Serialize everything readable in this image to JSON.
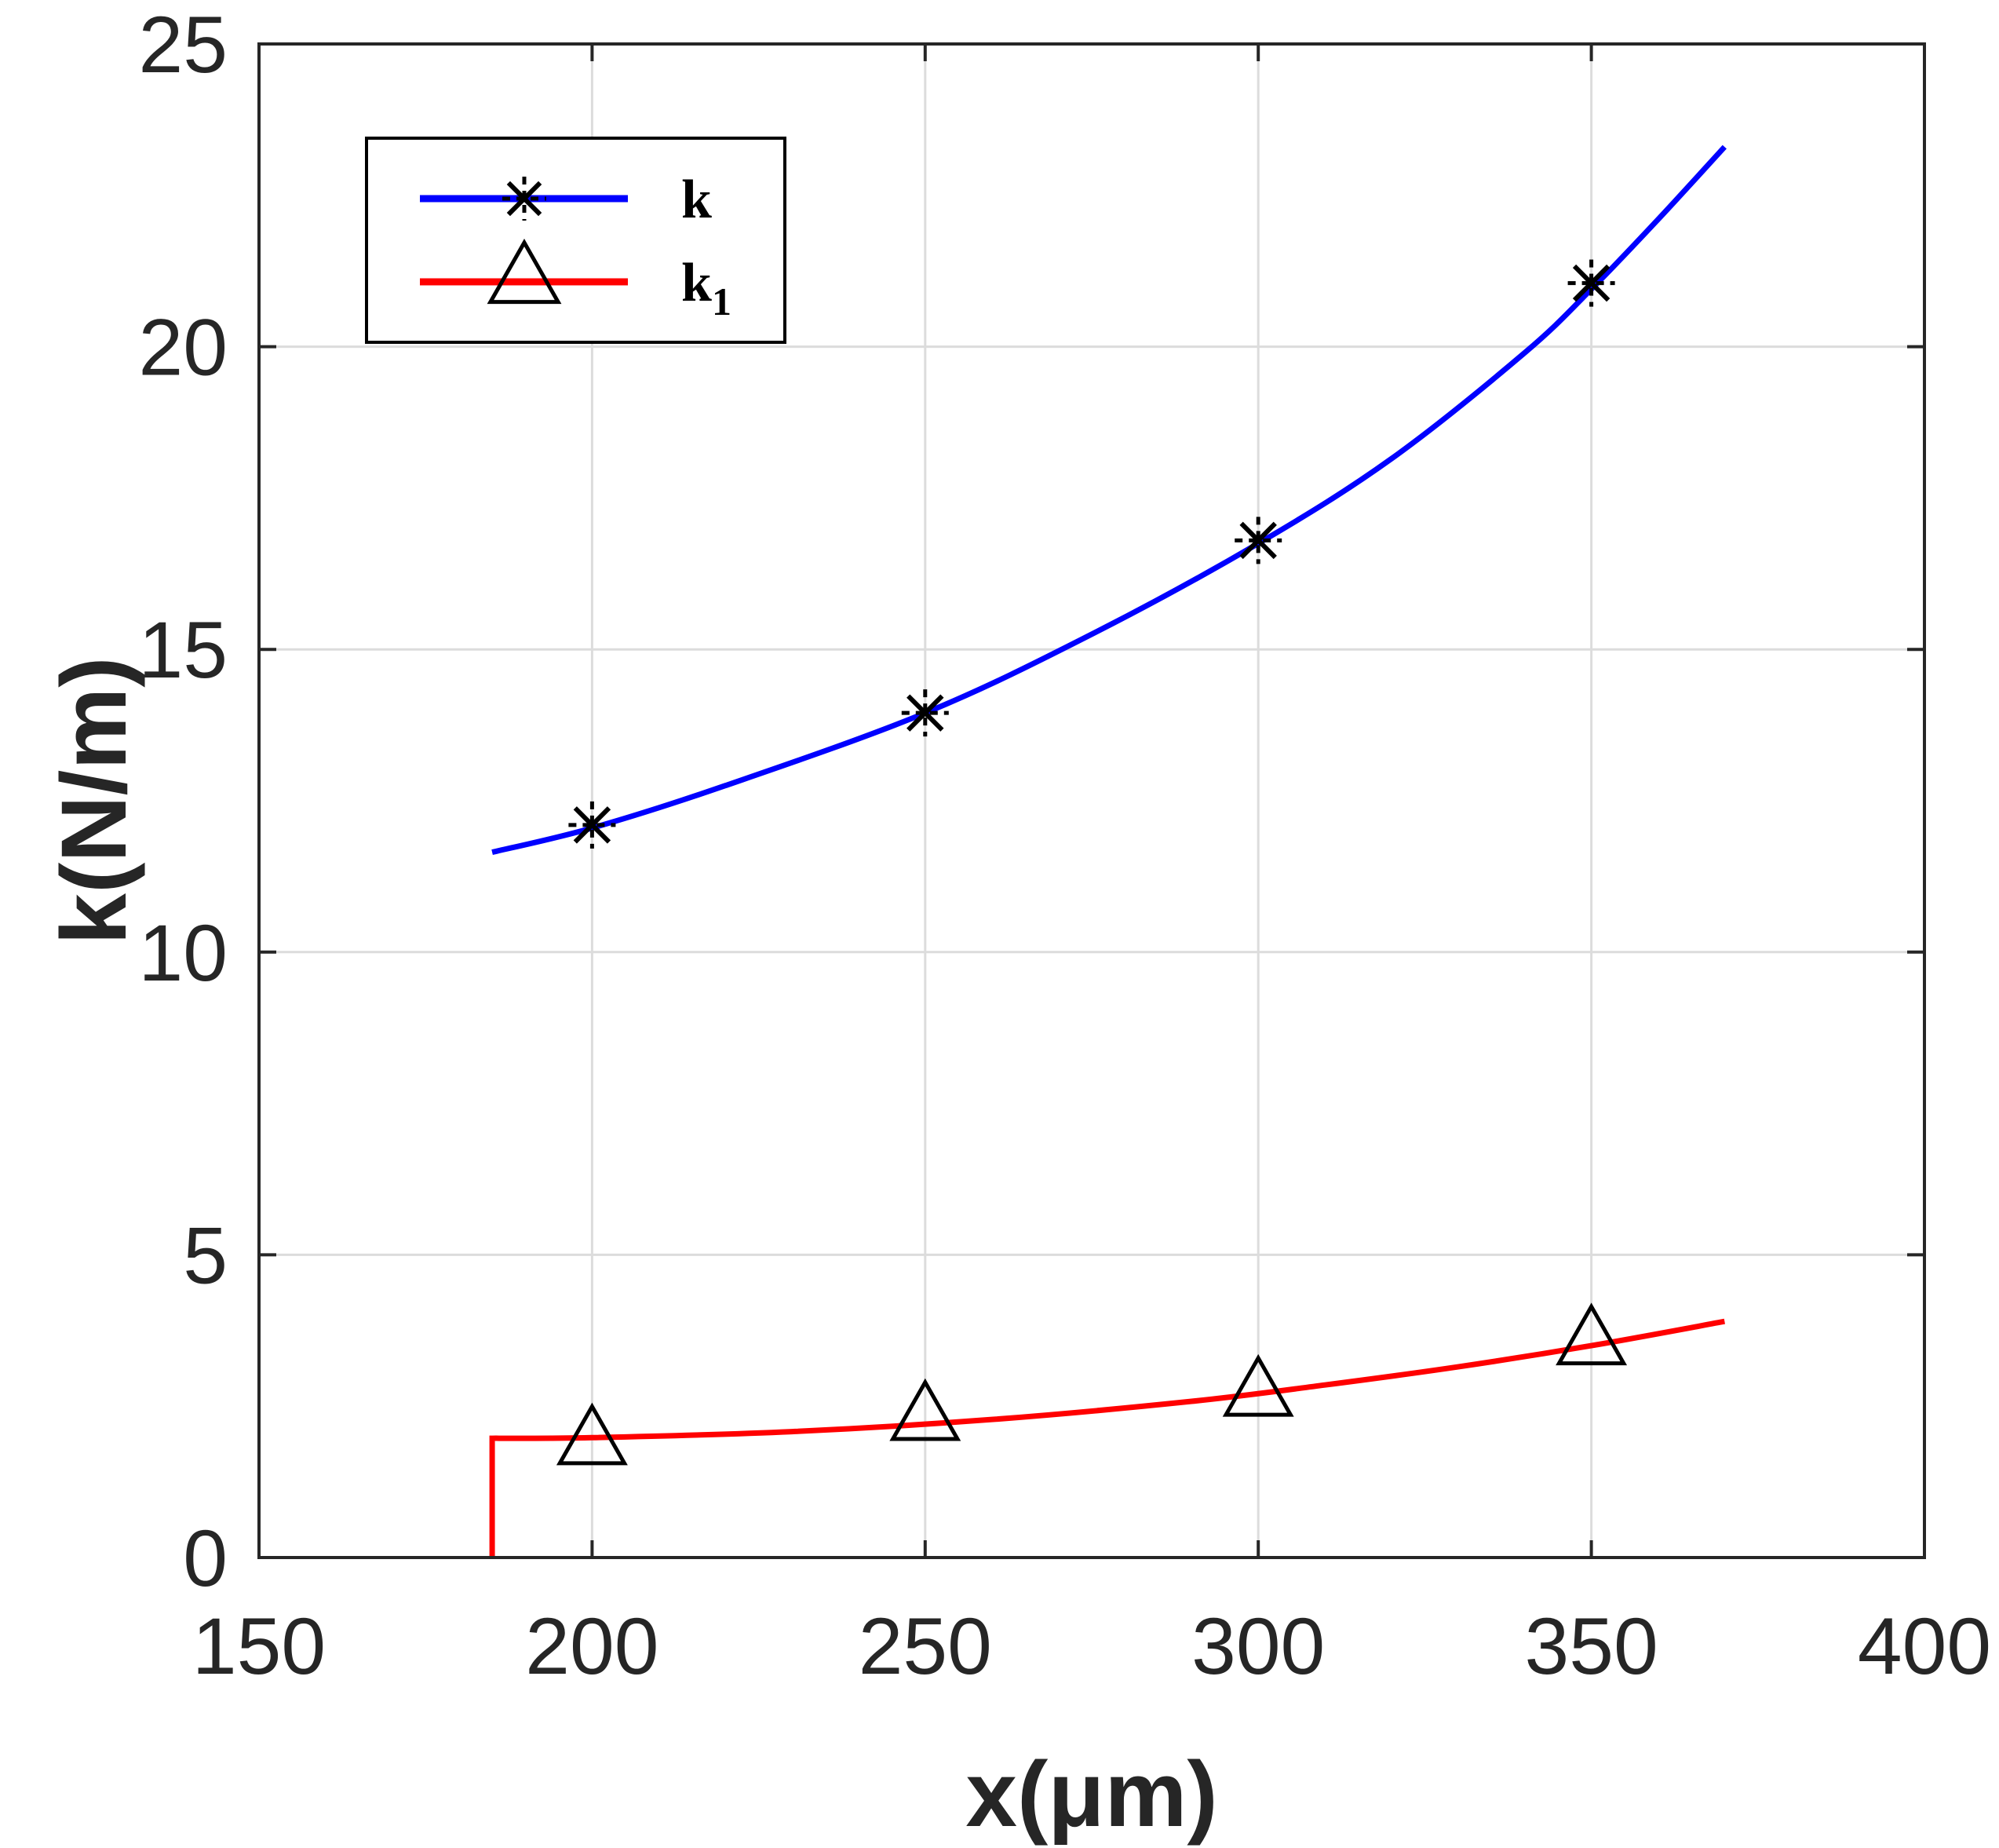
{
  "chart_data": {
    "type": "line",
    "title": "",
    "xlabel": "x(μm)",
    "ylabel": "k(N/m)",
    "xlim": [
      150,
      400
    ],
    "ylim": [
      0,
      25
    ],
    "xticks": [
      150,
      200,
      250,
      300,
      350,
      400
    ],
    "yticks": [
      0,
      5,
      10,
      15,
      20,
      25
    ],
    "xtick_labels": [
      "150",
      "200",
      "250",
      "300",
      "350",
      "400"
    ],
    "ytick_labels": [
      "0",
      "5",
      "10",
      "15",
      "20",
      "25"
    ],
    "grid": true,
    "legend_position": "top-left",
    "series": [
      {
        "name": "k",
        "legend_main": "k",
        "legend_sub": "",
        "color": "#0000ff",
        "marker": "asterisk",
        "marker_x": [
          200,
          250,
          300,
          350
        ],
        "marker_y": [
          12.1,
          13.95,
          16.8,
          21.05
        ],
        "curve_x": [
          185,
          200,
          220,
          250,
          275,
          300,
          320,
          340,
          350,
          360,
          370
        ],
        "curve_y": [
          11.65,
          12.05,
          12.75,
          13.95,
          15.25,
          16.75,
          18.15,
          19.9,
          20.95,
          22.1,
          23.3
        ]
      },
      {
        "name": "k1",
        "legend_main": "k",
        "legend_sub": "1",
        "color": "#ff0000",
        "marker": "triangle",
        "marker_x": [
          200,
          250,
          300,
          350
        ],
        "marker_y": [
          1.95,
          2.35,
          2.75,
          3.6
        ],
        "curve_x": [
          185,
          185,
          200,
          230,
          260,
          290,
          310,
          330,
          350,
          370
        ],
        "curve_y": [
          0,
          1.97,
          1.98,
          2.08,
          2.28,
          2.58,
          2.85,
          3.15,
          3.5,
          3.9
        ]
      }
    ]
  }
}
